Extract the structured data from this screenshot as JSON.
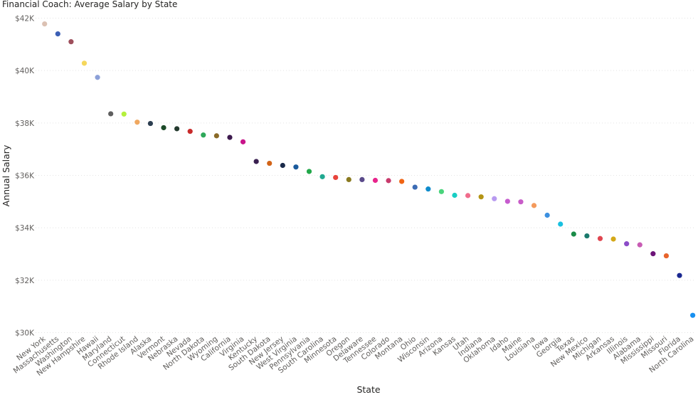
{
  "chart_data": {
    "type": "scatter",
    "title": "Financial Coach: Average Salary by State",
    "xlabel": "State",
    "ylabel": "Annual Salary",
    "ylim": [
      30000,
      42000
    ],
    "yticks": [
      30000,
      32000,
      34000,
      36000,
      38000,
      40000,
      42000
    ],
    "ytick_labels": [
      "$30K",
      "$32K",
      "$34K",
      "$36K",
      "$38K",
      "$40K",
      "$42K"
    ],
    "grid": "horizontal dotted",
    "legend": "none",
    "categories": [
      "New York",
      "Massachusetts",
      "Washington",
      "New Hampshire",
      "Hawaii",
      "Maryland",
      "Connecticut",
      "Rhode Island",
      "Alaska",
      "Vermont",
      "Nebraska",
      "Nevada",
      "North Dakota",
      "Wyoming",
      "California",
      "Virginia",
      "Kentucky",
      "South Dakota",
      "New Jersey",
      "West Virginia",
      "Pennsylvania",
      "South Carolina",
      "Minnesota",
      "Oregon",
      "Delaware",
      "Tennessee",
      "Colorado",
      "Montana",
      "Ohio",
      "Wisconsin",
      "Arizona",
      "Kansas",
      "Utah",
      "Indiana",
      "Oklahoma",
      "Idaho",
      "Maine",
      "Louisiana",
      "Iowa",
      "Georgia",
      "Texas",
      "New Mexico",
      "Michigan",
      "Arkansas",
      "Illinois",
      "Alabama",
      "Mississippi",
      "Missouri",
      "Florida",
      "North Carolina"
    ],
    "values": [
      41780,
      41400,
      41100,
      40280,
      39740,
      38350,
      38340,
      38030,
      37980,
      37820,
      37780,
      37680,
      37540,
      37510,
      37450,
      37280,
      36530,
      36460,
      36380,
      36320,
      36150,
      35950,
      35920,
      35840,
      35840,
      35810,
      35800,
      35770,
      35550,
      35480,
      35380,
      35240,
      35230,
      35180,
      35110,
      35010,
      34990,
      34850,
      34480,
      34140,
      33760,
      33690,
      33590,
      33570,
      33390,
      33350,
      33010,
      32930,
      32180,
      30660
    ],
    "colors": [
      "#dbc1b3",
      "#3b5fb5",
      "#9e4f5c",
      "#f5d75c",
      "#8ca0d8",
      "#5f5f5f",
      "#b4f03c",
      "#f0a860",
      "#2c3e50",
      "#1c4a28",
      "#243a2e",
      "#c82a2a",
      "#2ea85a",
      "#8a6a28",
      "#3d1a4e",
      "#c8148a",
      "#3a2050",
      "#d26418",
      "#1a2a4a",
      "#1a5a9c",
      "#22a84a",
      "#20a890",
      "#e8443c",
      "#8a7a20",
      "#5a4a8a",
      "#e8248c",
      "#c83a6c",
      "#f06414",
      "#3c6cb4",
      "#108ccc",
      "#4ad47c",
      "#18cec4",
      "#f06c8c",
      "#b49414",
      "#b89af0",
      "#c65cce",
      "#c85cc8",
      "#f49a5c",
      "#3c90e0",
      "#18c0e0",
      "#1a8c48",
      "#1a7a6c",
      "#e04650",
      "#d4a818",
      "#8c4cc8",
      "#c85cb4",
      "#6c1478",
      "#e8642c",
      "#1a2890",
      "#1890f0"
    ]
  }
}
